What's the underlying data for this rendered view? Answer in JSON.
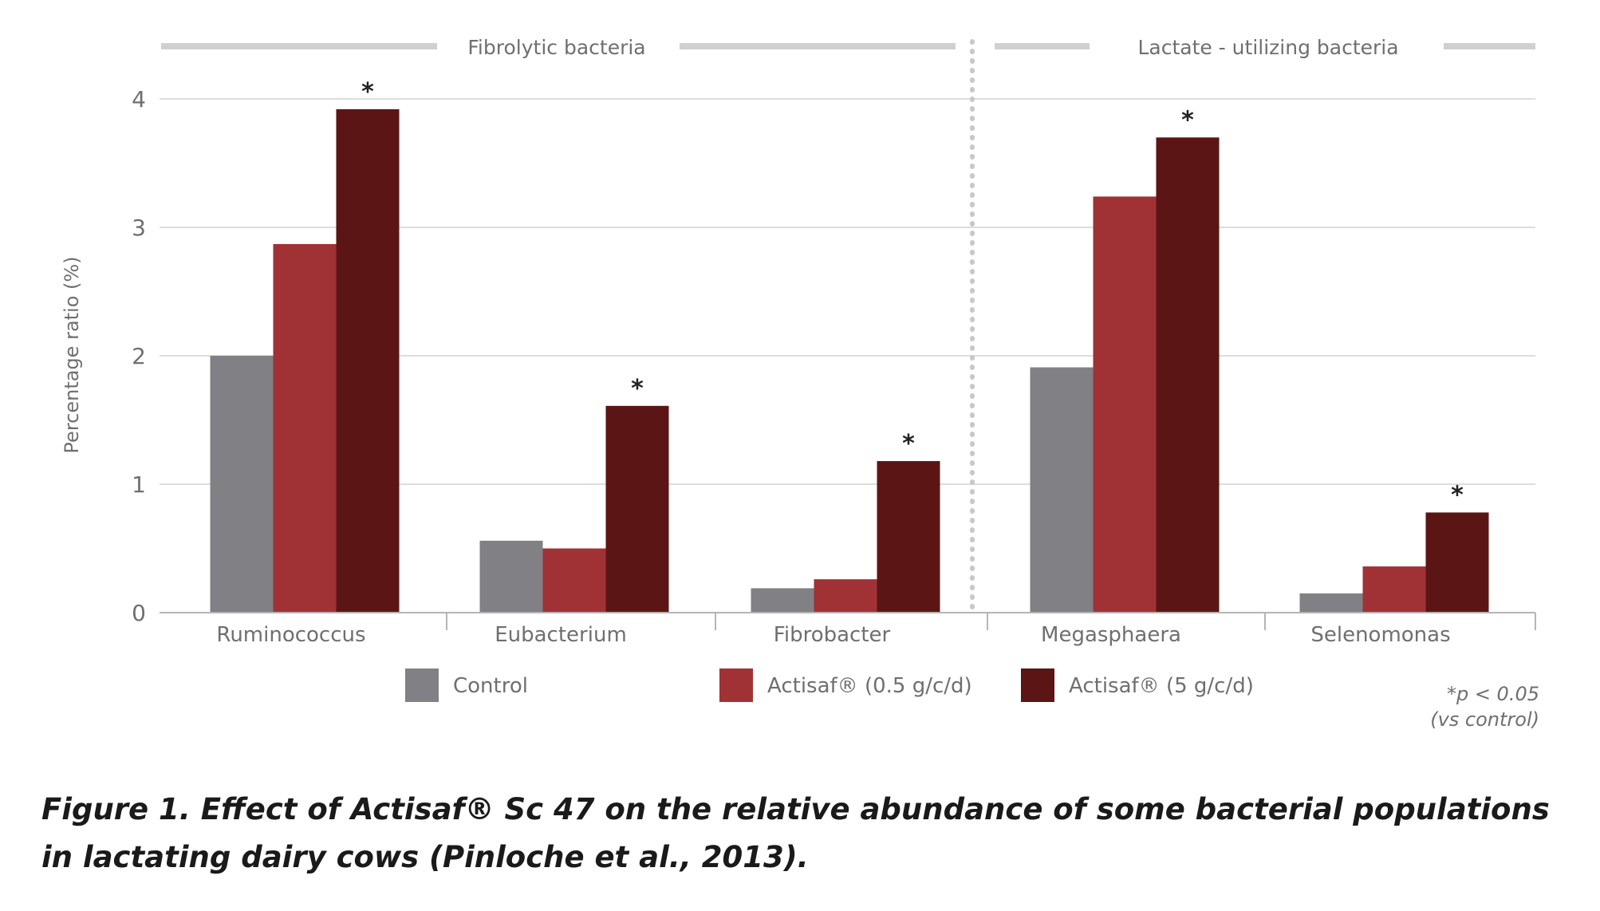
{
  "chart_data": {
    "type": "bar",
    "categories": [
      "Ruminococcus",
      "Eubacterium",
      "Fibrobacter",
      "Megasphaera",
      "Selenomonas"
    ],
    "series": [
      {
        "name": "Control",
        "values": [
          2.0,
          0.56,
          0.19,
          1.91,
          0.15
        ],
        "color": "#818085"
      },
      {
        "name": "Actisaf® (0.5 g/c/d)",
        "values": [
          2.87,
          0.5,
          0.26,
          3.24,
          0.36
        ],
        "color": "#a03236"
      },
      {
        "name": "Actisaf® (5 g/c/d)",
        "values": [
          3.92,
          1.61,
          1.18,
          3.7,
          0.78
        ],
        "color": "#5c1515"
      }
    ],
    "significance": [
      true,
      true,
      true,
      true,
      true
    ],
    "significance_mark": "*",
    "ylabel": "Percentage ratio (%)",
    "xlabel": "",
    "ylim": [
      0,
      4
    ],
    "yticks": [
      0,
      1,
      2,
      3,
      4
    ],
    "grid": true,
    "legend_position": "bottom",
    "groups": [
      {
        "label": "Fibrolytic bacteria",
        "categories": [
          "Ruminococcus",
          "Eubacterium",
          "Fibrobacter"
        ]
      },
      {
        "label": "Lactate - utilizing bacteria",
        "categories": [
          "Megasphaera",
          "Selenomonas"
        ]
      }
    ]
  },
  "footnote": {
    "line1": "*p  < 0.05",
    "line2": "(vs control)"
  },
  "caption": "Figure 1. Effect of Actisaf® Sc 47 on the relative abundance of some bacterial populations in lactating dairy cows (Pinloche et al., 2013)."
}
